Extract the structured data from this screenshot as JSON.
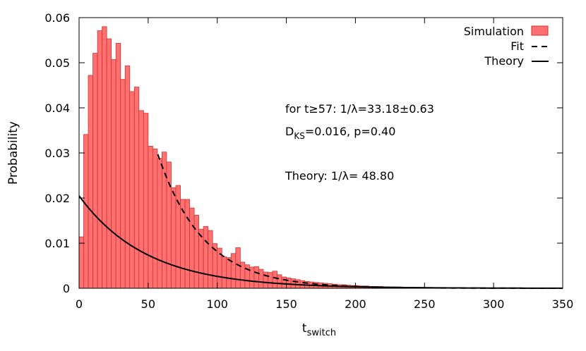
{
  "chart_data": {
    "type": "bar",
    "title": "",
    "xlabel": "t",
    "xlabel_sub": "switch",
    "ylabel": "Probability",
    "xlim": [
      0,
      350
    ],
    "ylim": [
      0,
      0.06
    ],
    "xticks": [
      0,
      50,
      100,
      150,
      200,
      250,
      300,
      350
    ],
    "yticks": [
      0,
      0.01,
      0.02,
      0.03,
      0.04,
      0.05,
      0.06
    ],
    "ytick_labels": [
      "0",
      "0.01",
      "0.02",
      "0.03",
      "0.04",
      "0.05",
      "0.06"
    ],
    "grid": false,
    "legend_position": "top-right",
    "series": [
      {
        "name": "Simulation",
        "kind": "histogram",
        "bin_width": 3.33,
        "color": "#ff7070",
        "edge_color": "#d23232",
        "bin_centers": [
          1.67,
          5.0,
          8.33,
          11.67,
          15.0,
          18.33,
          21.67,
          25.0,
          28.33,
          31.67,
          35.0,
          38.33,
          41.67,
          45.0,
          48.33,
          51.67,
          55.0,
          58.33,
          61.67,
          65.0,
          68.33,
          71.67,
          75.0,
          78.33,
          81.67,
          85.0,
          88.33,
          91.67,
          95.0,
          98.33,
          101.67,
          105.0,
          108.33,
          111.67,
          115.0,
          118.33,
          121.67,
          125.0,
          128.33,
          131.67,
          135.0,
          138.33,
          141.67,
          145.0,
          148.33,
          151.67,
          155.0,
          158.33,
          161.67,
          165.0,
          168.33,
          171.67,
          175.0,
          178.33,
          181.67,
          185.0,
          188.33,
          191.67,
          195.0,
          198.33,
          201.67,
          205.0,
          208.33,
          211.67,
          215.0,
          218.33,
          221.67,
          225.0,
          228.33,
          231.67,
          235.0,
          238.33,
          241.67,
          245.0,
          248.33,
          251.67,
          255.0,
          258.33,
          261.67,
          265.0,
          268.33,
          271.67
        ],
        "values": [
          0.0114,
          0.0341,
          0.0472,
          0.0521,
          0.0571,
          0.058,
          0.0553,
          0.0507,
          0.0543,
          0.0463,
          0.0493,
          0.0436,
          0.0446,
          0.0394,
          0.0388,
          0.0315,
          0.0309,
          0.0288,
          0.0302,
          0.028,
          0.0223,
          0.0228,
          0.0197,
          0.0197,
          0.0178,
          0.0162,
          0.0131,
          0.0137,
          0.0128,
          0.0099,
          0.0089,
          0.007,
          0.0068,
          0.0077,
          0.009,
          0.0058,
          0.0052,
          0.0047,
          0.0048,
          0.0042,
          0.0036,
          0.0035,
          0.0038,
          0.003,
          0.0025,
          0.0023,
          0.0021,
          0.0019,
          0.0017,
          0.0015,
          0.0014,
          0.0013,
          0.0012,
          0.0011,
          0.001,
          0.0009,
          0.0008,
          0.0008,
          0.0007,
          0.0006,
          0.0006,
          0.0005,
          0.0005,
          0.0004,
          0.0004,
          0.0004,
          0.0003,
          0.0003,
          0.0003,
          0.0003,
          0.0002,
          0.0002,
          0.0002,
          0.0002,
          0.0002,
          0.0001,
          0.0001,
          0.0001,
          0.0001,
          0.0001,
          0.0001,
          0.0001
        ]
      },
      {
        "name": "Fit",
        "kind": "exponential",
        "line_style": "dashed",
        "color": "#000000",
        "x_start": 57,
        "x_end": 350,
        "inverse_rate": 33.18,
        "value_at_start": 0.0297
      },
      {
        "name": "Theory",
        "kind": "exponential",
        "line_style": "solid",
        "color": "#000000",
        "x_start": 0,
        "x_end": 350,
        "inverse_rate": 48.8,
        "value_at_start": 0.0205
      }
    ],
    "annotations": {
      "line1": "for t≥57: 1/λ=33.18±0.63",
      "line2_main": "D",
      "line2_sub": "KS",
      "line2_rest": "=0.016, p=0.40",
      "line3": "Theory: 1/λ= 48.80"
    }
  }
}
